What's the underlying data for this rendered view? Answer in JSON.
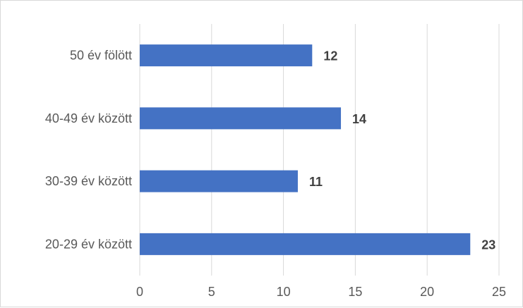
{
  "chart_data": {
    "type": "bar",
    "orientation": "horizontal",
    "categories": [
      "20-29 év között",
      "30-39 év között",
      "40-49 év között",
      "50 év fölött"
    ],
    "values": [
      23,
      11,
      14,
      12
    ],
    "x_ticks": [
      "0",
      "5",
      "10",
      "15",
      "20",
      "25"
    ],
    "xlim": [
      0,
      25
    ],
    "grid": true,
    "legend": false,
    "title": "",
    "xlabel": "",
    "ylabel": "",
    "colors": {
      "bar": "#4472c4",
      "grid": "#d9d9d9",
      "axis_text": "#595959",
      "data_label": "#404040"
    }
  }
}
